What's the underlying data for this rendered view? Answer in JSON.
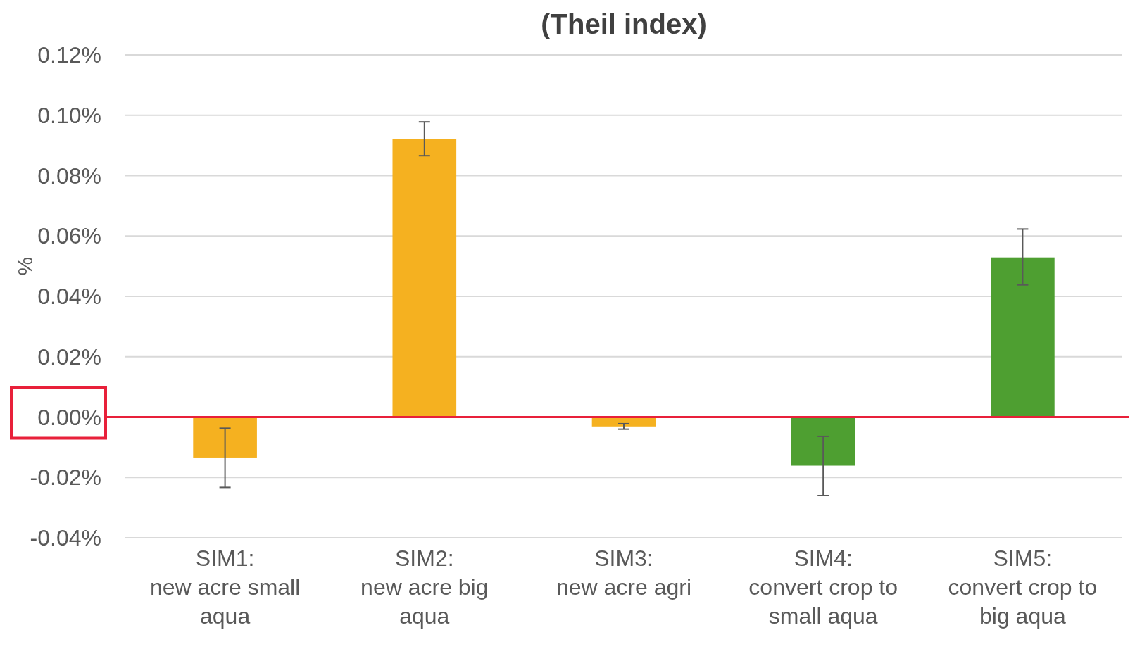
{
  "chart_data": {
    "type": "bar",
    "title": "(Theil index)",
    "ylabel": "%",
    "categories": [
      "SIM1:\nnew acre small\naqua",
      "SIM2:\nnew acre big\naqua",
      "SIM3:\nnew acre agri",
      "SIM4:\nconvert crop to\nsmall aqua",
      "SIM5:\nconvert crop to\nbig aqua"
    ],
    "values": [
      -0.0134,
      0.0921,
      -0.0031,
      -0.0161,
      0.0529
    ],
    "colors": [
      "#f5b120",
      "#f5b120",
      "#f5b120",
      "#4e9f31",
      "#4e9f31"
    ],
    "errors": [
      [
        -0.0233,
        -0.0037
      ],
      [
        0.0866,
        0.0978
      ],
      [
        -0.004,
        -0.0022
      ],
      [
        -0.026,
        -0.0064
      ],
      [
        0.0438,
        0.0623
      ]
    ],
    "ylim": [
      -0.04,
      0.12
    ],
    "yticks": [
      {
        "value": -0.04,
        "label": "-0.04%"
      },
      {
        "value": -0.02,
        "label": "-0.02%"
      },
      {
        "value": 0,
        "label": "0.00%"
      },
      {
        "value": 0.02,
        "label": "0.02%"
      },
      {
        "value": 0.04,
        "label": "0.04%"
      },
      {
        "value": 0.06,
        "label": "0.06%"
      },
      {
        "value": 0.08,
        "label": "0.08%"
      },
      {
        "value": 0.1,
        "label": "0.10%"
      },
      {
        "value": 0.12,
        "label": "0.12%"
      }
    ],
    "ref_lines": [
      {
        "axis": "y",
        "value": 0,
        "color": "#e8203a"
      }
    ],
    "grid": "y"
  }
}
